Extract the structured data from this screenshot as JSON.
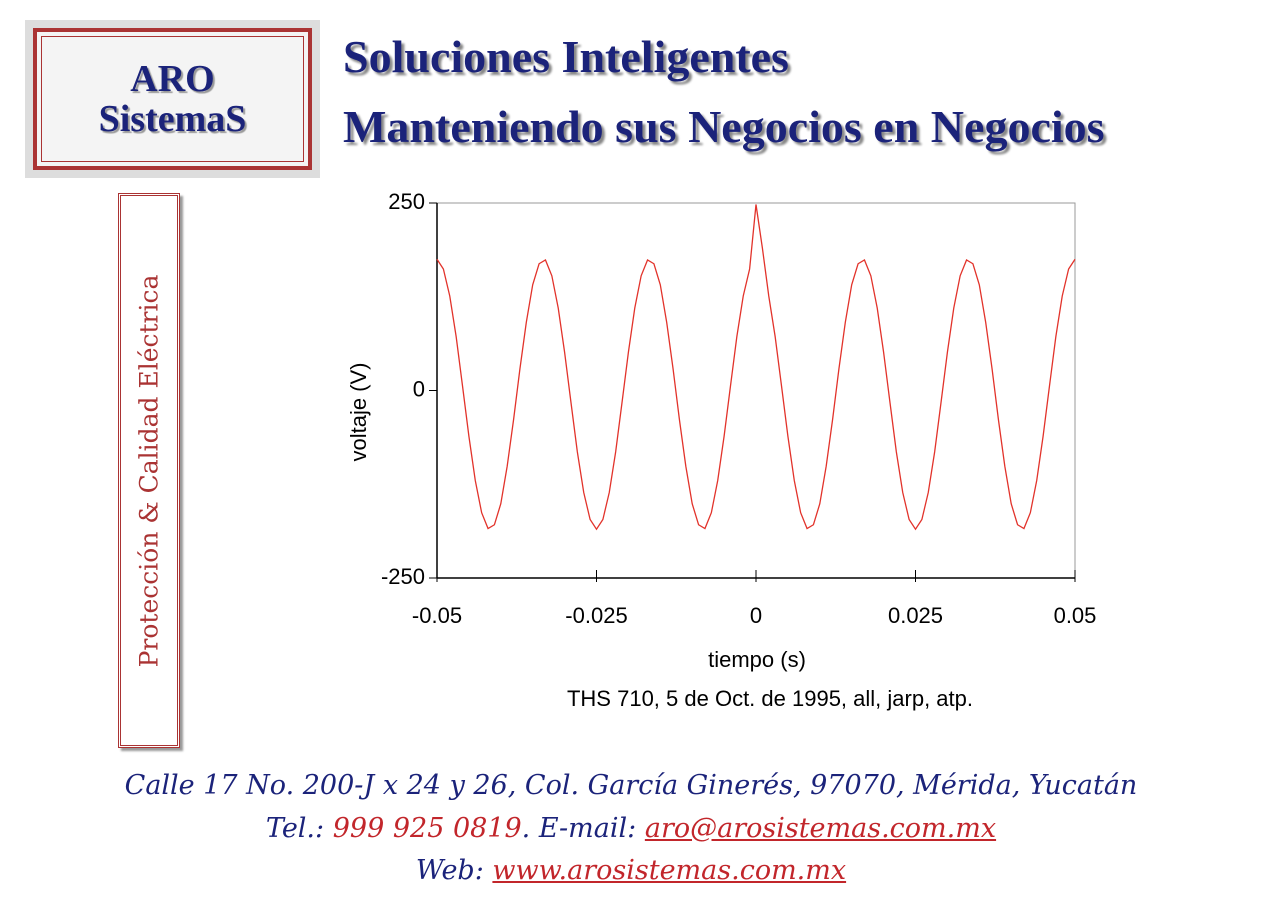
{
  "logo": {
    "line1": "ARO",
    "line2": "SistemaS"
  },
  "header": {
    "line1": "Soluciones Inteligentes",
    "line2": "Manteniendo sus Negocios en Negocios"
  },
  "side_label": "Protección & Calidad Eléctrica",
  "chart_data": {
    "type": "line",
    "x_label": "tiempo (s)",
    "y_label": "voltaje (V)",
    "caption": "THS 710, 5 de Oct. de 1995, all, jarp, atp.",
    "color": "#e2332b",
    "xlim": [
      -0.05,
      0.05
    ],
    "xticks": [
      -0.05,
      -0.025,
      0,
      0.025,
      0.05
    ],
    "ylim": [
      -250,
      250
    ],
    "yticks": [
      250,
      0,
      -250
    ],
    "x": [
      -0.05,
      -0.049,
      -0.048,
      -0.047,
      -0.046,
      -0.045,
      -0.044,
      -0.043,
      -0.042,
      -0.041,
      -0.04,
      -0.039,
      -0.038,
      -0.037,
      -0.036,
      -0.035,
      -0.034,
      -0.033,
      -0.032,
      -0.031,
      -0.03,
      -0.029,
      -0.028,
      -0.027,
      -0.026,
      -0.025,
      -0.024,
      -0.023,
      -0.022,
      -0.021,
      -0.02,
      -0.019,
      -0.018,
      -0.017,
      -0.016,
      -0.015,
      -0.014,
      -0.013,
      -0.012,
      -0.011,
      -0.01,
      -0.009,
      -0.008,
      -0.007,
      -0.006,
      -0.005,
      -0.004,
      -0.003,
      -0.002,
      -0.001,
      0,
      0.001,
      0.002,
      0.003,
      0.004,
      0.005,
      0.006,
      0.007,
      0.008,
      0.009,
      0.01,
      0.011,
      0.012,
      0.013,
      0.014,
      0.015,
      0.016,
      0.017,
      0.018,
      0.019,
      0.02,
      0.021,
      0.022,
      0.023,
      0.024,
      0.025,
      0.026,
      0.027,
      0.028,
      0.029,
      0.03,
      0.031,
      0.032,
      0.033,
      0.034,
      0.035,
      0.036,
      0.037,
      0.038,
      0.039,
      0.04,
      0.041,
      0.042,
      0.043,
      0.044,
      0.045,
      0.046,
      0.047,
      0.048,
      0.049,
      0.05
    ],
    "values": [
      175,
      162,
      126,
      72,
      6,
      -61,
      -120,
      -163,
      -184,
      -179,
      -151,
      -101,
      -39,
      29,
      91,
      141,
      169,
      174,
      153,
      110,
      51,
      -16,
      -82,
      -136,
      -172,
      -185,
      -172,
      -136,
      -82,
      -16,
      51,
      110,
      153,
      174,
      169,
      141,
      91,
      29,
      -39,
      -101,
      -151,
      -179,
      -184,
      -163,
      -120,
      -61,
      6,
      72,
      126,
      162,
      248,
      190,
      126,
      72,
      6,
      -61,
      -120,
      -163,
      -184,
      -179,
      -151,
      -101,
      -39,
      29,
      91,
      141,
      169,
      174,
      153,
      110,
      51,
      -16,
      -82,
      -136,
      -172,
      -185,
      -172,
      -136,
      -82,
      -16,
      51,
      110,
      153,
      174,
      169,
      141,
      91,
      29,
      -39,
      -101,
      -151,
      -179,
      -184,
      -163,
      -120,
      -61,
      6,
      72,
      126,
      162,
      175
    ]
  },
  "footer": {
    "address": "Calle 17 No. 200-J x 24 y 26, Col. García Ginerés, 97070, Mérida, Yucatán",
    "tel_label": "Tel.:",
    "phone": "999 925 0819",
    "email_label": ". E-mail:",
    "email": "aro@arosistemas.com.mx",
    "web_label": "Web:",
    "web": "www.arosistemas.com.mx"
  }
}
